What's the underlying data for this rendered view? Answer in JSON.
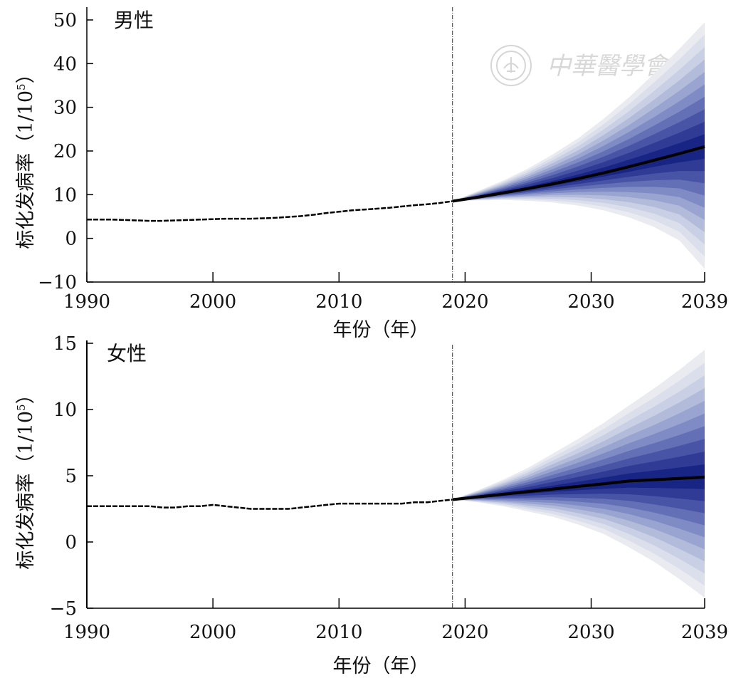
{
  "watermark": {
    "text": "中華醫學會"
  },
  "chart_data": [
    {
      "type": "area",
      "title": "男性",
      "xlabel": "年份（年）",
      "ylabel": "标化发病率（1/10",
      "ylabel_sup": "5",
      "ylabel_close": "）",
      "xlim": [
        1990,
        2039
      ],
      "ylim": [
        -10,
        50
      ],
      "xticks": [
        1990,
        2000,
        2010,
        2020,
        2030,
        2039
      ],
      "xtick_labels": [
        "1990",
        "2000",
        "2010",
        "2020",
        "2030",
        "2039"
      ],
      "yticks": [
        50,
        40,
        30,
        20,
        10,
        0,
        -10
      ],
      "ytick_labels": [
        "50",
        "40",
        "30",
        "20",
        "10",
        "0",
        "−10"
      ],
      "forecast_start": 2019,
      "observed": {
        "x": [
          1990,
          1991,
          1992,
          1993,
          1994,
          1995,
          1996,
          1997,
          1998,
          1999,
          2000,
          2001,
          2002,
          2003,
          2004,
          2005,
          2006,
          2007,
          2008,
          2009,
          2010,
          2011,
          2012,
          2013,
          2014,
          2015,
          2016,
          2017,
          2018,
          2019
        ],
        "y": [
          4.3,
          4.3,
          4.3,
          4.2,
          4.1,
          4.0,
          4.0,
          4.1,
          4.2,
          4.3,
          4.4,
          4.5,
          4.5,
          4.5,
          4.6,
          4.7,
          4.9,
          5.1,
          5.4,
          5.8,
          6.1,
          6.4,
          6.6,
          6.8,
          7.0,
          7.3,
          7.6,
          7.8,
          8.1,
          8.5
        ]
      },
      "forecast": {
        "x": [
          2019,
          2021,
          2023,
          2025,
          2027,
          2029,
          2031,
          2033,
          2035,
          2037,
          2039
        ],
        "median": [
          8.5,
          9.4,
          10.4,
          11.4,
          12.5,
          13.7,
          15.0,
          16.4,
          17.9,
          19.4,
          21.0
        ],
        "lower": [
          8.5,
          8.7,
          8.8,
          8.6,
          8.2,
          7.5,
          6.4,
          4.8,
          2.6,
          -0.5,
          -7.0
        ],
        "upper": [
          8.5,
          10.8,
          13.2,
          16.0,
          19.3,
          23.0,
          27.4,
          32.3,
          37.7,
          43.4,
          49.5
        ]
      }
    },
    {
      "type": "area",
      "title": "女性",
      "xlabel": "年份（年）",
      "ylabel": "标化发病率（1/10",
      "ylabel_sup": "5",
      "ylabel_close": "）",
      "xlim": [
        1990,
        2039
      ],
      "ylim": [
        -5,
        15
      ],
      "xticks": [
        1990,
        2000,
        2010,
        2020,
        2030,
        2039
      ],
      "xtick_labels": [
        "1990",
        "2000",
        "2010",
        "2020",
        "2030",
        "2039"
      ],
      "yticks": [
        15,
        10,
        5,
        0,
        -5
      ],
      "ytick_labels": [
        "15",
        "10",
        "5",
        "0",
        "−5"
      ],
      "forecast_start": 2019,
      "observed": {
        "x": [
          1990,
          1991,
          1992,
          1993,
          1994,
          1995,
          1996,
          1997,
          1998,
          1999,
          2000,
          2001,
          2002,
          2003,
          2004,
          2005,
          2006,
          2007,
          2008,
          2009,
          2010,
          2011,
          2012,
          2013,
          2014,
          2015,
          2016,
          2017,
          2018,
          2019
        ],
        "y": [
          2.7,
          2.7,
          2.7,
          2.7,
          2.7,
          2.7,
          2.6,
          2.6,
          2.7,
          2.7,
          2.8,
          2.7,
          2.6,
          2.5,
          2.5,
          2.5,
          2.5,
          2.6,
          2.7,
          2.8,
          2.9,
          2.9,
          2.9,
          2.9,
          2.9,
          2.9,
          3.0,
          3.0,
          3.1,
          3.2
        ]
      },
      "forecast": {
        "x": [
          2019,
          2021,
          2023,
          2025,
          2027,
          2029,
          2031,
          2033,
          2035,
          2037,
          2039
        ],
        "median": [
          3.2,
          3.4,
          3.6,
          3.8,
          4.0,
          4.2,
          4.4,
          4.6,
          4.7,
          4.8,
          4.9
        ],
        "lower": [
          3.2,
          3.0,
          2.7,
          2.3,
          1.9,
          1.3,
          0.6,
          -0.4,
          -1.5,
          -2.8,
          -4.2
        ],
        "upper": [
          3.2,
          3.9,
          4.7,
          5.6,
          6.7,
          7.8,
          9.0,
          10.3,
          11.6,
          13.0,
          14.5
        ]
      }
    }
  ]
}
